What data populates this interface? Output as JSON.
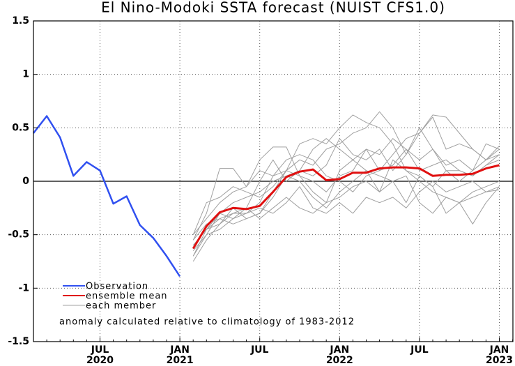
{
  "chart_data": {
    "type": "line",
    "title": "El Nino-Modoki SSTA forecast (NUIST CFS1.0)",
    "categories": [
      null,
      null,
      null,
      null,
      null,
      "JUL",
      null,
      null,
      null,
      null,
      null,
      "JAN",
      null,
      null,
      null,
      null,
      null,
      "JUL",
      null,
      null,
      null,
      null,
      null,
      "JAN",
      null,
      null,
      null,
      null,
      null,
      "JUL",
      null,
      null,
      null,
      null,
      null,
      "JAN",
      null
    ],
    "category_years": [
      null,
      null,
      null,
      null,
      null,
      "2020",
      null,
      null,
      null,
      null,
      null,
      "2021",
      null,
      null,
      null,
      null,
      null,
      null,
      null,
      null,
      null,
      null,
      null,
      "2022",
      null,
      null,
      null,
      null,
      null,
      null,
      null,
      null,
      null,
      null,
      null,
      "2023",
      null
    ],
    "ylim": [
      -1.5,
      1.5
    ],
    "yticks": [
      -1.5,
      -1,
      -0.5,
      0,
      0.5,
      1,
      1.5
    ],
    "grid": true,
    "members": {
      "name": "each member",
      "color": "#a0a0a0",
      "runs": [
        [
          null,
          null,
          null,
          null,
          null,
          null,
          null,
          null,
          null,
          null,
          null,
          null,
          -0.55,
          -0.3,
          0.12,
          0.12,
          -0.05,
          0.2,
          0.32,
          0.32,
          0.05,
          -0.1,
          -0.2,
          0.1,
          0.2,
          0.3,
          0.1,
          0.25,
          0.4,
          0.45,
          0.62,
          0.6,
          0.45,
          0.3,
          0.2,
          0.25,
          null
        ],
        [
          null,
          null,
          null,
          null,
          null,
          null,
          null,
          null,
          null,
          null,
          null,
          null,
          -0.7,
          -0.45,
          -0.35,
          -0.3,
          -0.3,
          -0.2,
          0.05,
          0.1,
          0.35,
          0.4,
          0.35,
          0.5,
          0.62,
          0.55,
          0.5,
          0.35,
          0.1,
          0.0,
          -0.1,
          -0.15,
          -0.2,
          -0.1,
          -0.05,
          0.0,
          null
        ],
        [
          null,
          null,
          null,
          null,
          null,
          null,
          null,
          null,
          null,
          null,
          null,
          null,
          -0.5,
          -0.2,
          -0.15,
          -0.05,
          -0.1,
          -0.15,
          -0.05,
          0.1,
          0.2,
          0.15,
          0.3,
          0.35,
          0.45,
          0.5,
          0.65,
          0.5,
          0.25,
          0.45,
          0.6,
          0.3,
          0.35,
          0.3,
          0.2,
          0.33,
          null
        ],
        [
          null,
          null,
          null,
          null,
          null,
          null,
          null,
          null,
          null,
          null,
          null,
          null,
          -0.6,
          -0.45,
          -0.4,
          -0.25,
          -0.35,
          -0.3,
          -0.15,
          0.05,
          0.1,
          0.3,
          0.4,
          0.3,
          0.2,
          0.1,
          -0.1,
          0.0,
          0.05,
          -0.2,
          -0.3,
          -0.15,
          -0.2,
          -0.4,
          -0.2,
          -0.05,
          null
        ],
        [
          null,
          null,
          null,
          null,
          null,
          null,
          null,
          null,
          null,
          null,
          null,
          null,
          -0.75,
          -0.55,
          -0.4,
          -0.3,
          -0.25,
          -0.35,
          -0.25,
          -0.15,
          -0.25,
          -0.3,
          -0.2,
          -0.15,
          -0.05,
          0.0,
          -0.1,
          0.2,
          0.1,
          0.05,
          -0.05,
          0.1,
          0.0,
          0.1,
          0.2,
          0.3,
          null
        ],
        [
          null,
          null,
          null,
          null,
          null,
          null,
          null,
          null,
          null,
          null,
          null,
          null,
          -0.65,
          -0.5,
          -0.45,
          -0.35,
          -0.25,
          0.0,
          0.2,
          0.0,
          0.1,
          0.05,
          0.15,
          0.4,
          0.25,
          0.2,
          0.3,
          0.1,
          0.25,
          0.5,
          0.3,
          0.15,
          0.2,
          0.1,
          0.35,
          0.3,
          null
        ],
        [
          null,
          null,
          null,
          null,
          null,
          null,
          null,
          null,
          null,
          null,
          null,
          null,
          -0.7,
          -0.5,
          -0.3,
          -0.35,
          -0.3,
          -0.25,
          -0.3,
          -0.2,
          -0.05,
          -0.25,
          -0.3,
          -0.2,
          -0.3,
          -0.15,
          -0.2,
          -0.15,
          -0.25,
          -0.1,
          0.0,
          -0.1,
          -0.05,
          0.0,
          -0.1,
          -0.05,
          null
        ],
        [
          null,
          null,
          null,
          null,
          null,
          null,
          null,
          null,
          null,
          null,
          null,
          null,
          -0.55,
          -0.4,
          -0.35,
          -0.4,
          -0.35,
          -0.3,
          -0.1,
          0.1,
          0.05,
          0.0,
          -0.1,
          0.05,
          0.1,
          0.3,
          0.25,
          0.4,
          0.3,
          0.2,
          0.3,
          0.1,
          0.1,
          0.05,
          0.15,
          0.2,
          null
        ],
        [
          null,
          null,
          null,
          null,
          null,
          null,
          null,
          null,
          null,
          null,
          null,
          null,
          -0.6,
          -0.45,
          -0.3,
          -0.2,
          -0.15,
          -0.1,
          0.0,
          0.05,
          0.0,
          -0.15,
          -0.25,
          -0.1,
          0.0,
          0.1,
          0.05,
          0.0,
          -0.2,
          0.05,
          -0.05,
          -0.3,
          -0.2,
          -0.15,
          -0.1,
          -0.08,
          null
        ],
        [
          null,
          null,
          null,
          null,
          null,
          null,
          null,
          null,
          null,
          null,
          null,
          null,
          -0.5,
          -0.35,
          -0.2,
          -0.1,
          -0.05,
          0.1,
          0.05,
          0.2,
          0.25,
          0.2,
          0.05,
          0.0,
          -0.1,
          0.05,
          0.1,
          0.15,
          0.3,
          0.1,
          0.15,
          0.2,
          0.1,
          0.05,
          0.15,
          0.25,
          null
        ]
      ]
    },
    "series": [
      {
        "name": "Observation",
        "color": "#3050f0",
        "values": [
          0.45,
          0.61,
          0.41,
          0.05,
          0.18,
          0.1,
          -0.21,
          -0.14,
          -0.41,
          -0.53,
          -0.7,
          -0.89,
          null,
          null,
          null,
          null,
          null,
          null,
          null,
          null,
          null,
          null,
          null,
          null,
          null,
          null,
          null,
          null,
          null,
          null,
          null,
          null,
          null,
          null,
          null,
          null,
          null
        ]
      },
      {
        "name": "ensemble mean",
        "color": "#e01010",
        "values": [
          null,
          null,
          null,
          null,
          null,
          null,
          null,
          null,
          null,
          null,
          null,
          null,
          -0.63,
          -0.42,
          -0.29,
          -0.25,
          -0.26,
          -0.23,
          -0.1,
          0.04,
          0.09,
          0.11,
          0.01,
          0.02,
          0.08,
          0.08,
          0.12,
          0.13,
          0.13,
          0.12,
          0.05,
          0.06,
          0.06,
          0.07,
          0.12,
          0.15,
          null
        ]
      }
    ],
    "annotation": "anomaly calculated relative to climatology of 1983-2012"
  }
}
